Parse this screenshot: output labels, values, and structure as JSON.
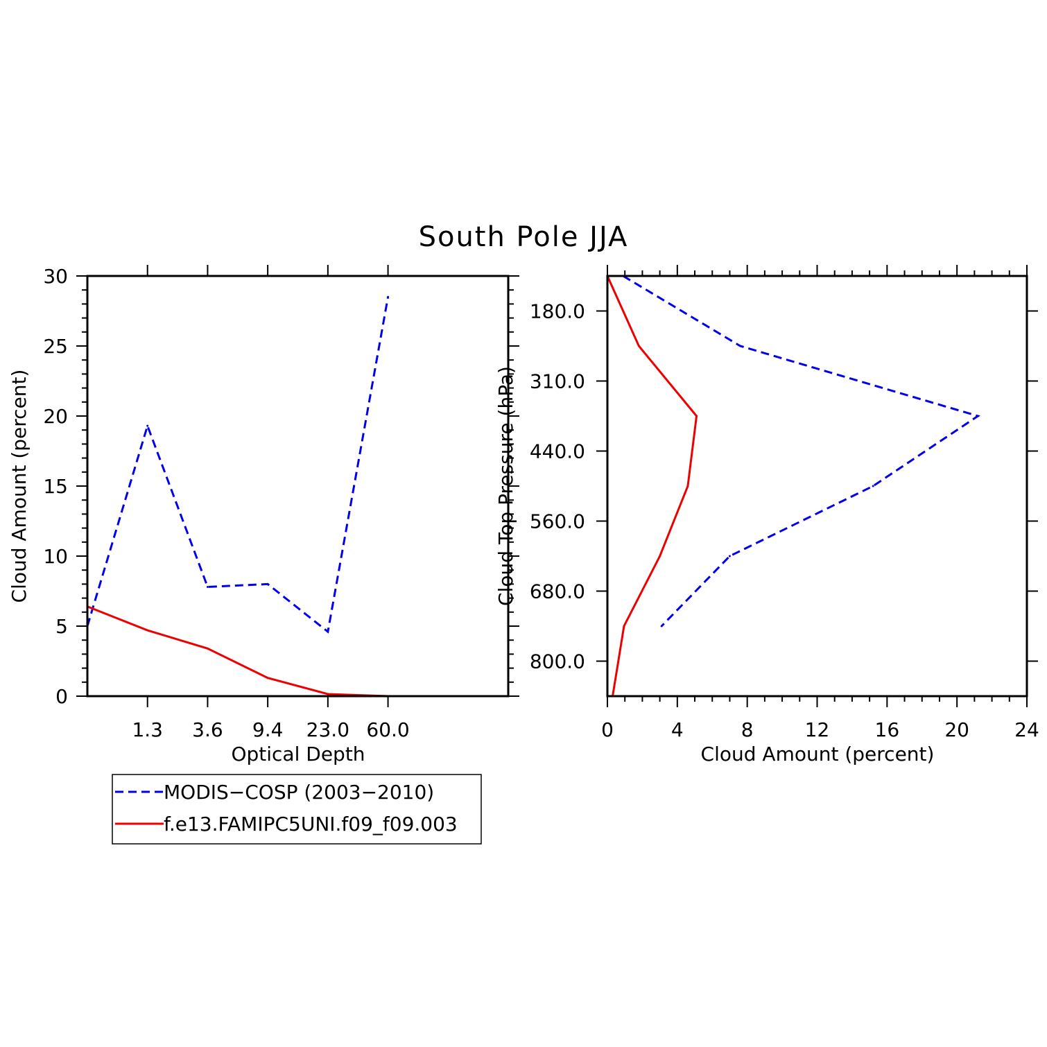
{
  "title": "South Pole JJA",
  "colors": {
    "obs": "#0000ee",
    "model": "#ee0000",
    "axis": "#000000"
  },
  "legend": {
    "entries": [
      {
        "label": "MODIS−COSP (2003−2010)",
        "color": "#0000ee",
        "dash": true
      },
      {
        "label": "f.e13.FAMIPC5UNI.f09_f09.003",
        "color": "#ee0000",
        "dash": false
      }
    ]
  },
  "chart_data": [
    {
      "type": "line",
      "panel": "optical-depth",
      "xlabel": "Optical Depth",
      "ylabel": "Cloud Amount (percent)",
      "xticks": [
        "1.3",
        "3.6",
        "9.4",
        "23.0",
        "60.0"
      ],
      "bins": 7,
      "ylim": [
        0,
        30
      ],
      "yticks": [
        0,
        5,
        10,
        15,
        20,
        25,
        30
      ],
      "series": [
        {
          "name": "MODIS−COSP (2003−2010)",
          "values": [
            5.0,
            19.3,
            7.8,
            8.0,
            4.6,
            28.5
          ],
          "color": "#0000ee",
          "dash": true
        },
        {
          "name": "f.e13.FAMIPC5UNI.f09_f09.003",
          "values": [
            6.4,
            4.7,
            3.4,
            1.3,
            0.15,
            0.0
          ],
          "color": "#ee0000",
          "dash": false
        }
      ]
    },
    {
      "type": "line",
      "panel": "cloud-top-pressure",
      "xlabel": "Cloud Amount (percent)",
      "ylabel": "Cloud Top Pressure (hPa)",
      "xlim": [
        0,
        24
      ],
      "xticks": [
        0,
        4,
        8,
        12,
        16,
        20,
        24
      ],
      "yticks": [
        "180.0",
        "310.0",
        "440.0",
        "560.0",
        "680.0",
        "800.0"
      ],
      "pressure_levels": 7,
      "series": [
        {
          "name": "MODIS−COSP (2003−2010)",
          "values": [
            0.9,
            7.6,
            21.2,
            15.2,
            7.0,
            3.1
          ],
          "color": "#0000ee",
          "dash": true
        },
        {
          "name": "f.e13.FAMIPC5UNI.f09_f09.003",
          "values": [
            0.0,
            1.8,
            5.1,
            4.6,
            3.0,
            0.95,
            0.3
          ],
          "color": "#ee0000",
          "dash": false
        }
      ]
    }
  ]
}
